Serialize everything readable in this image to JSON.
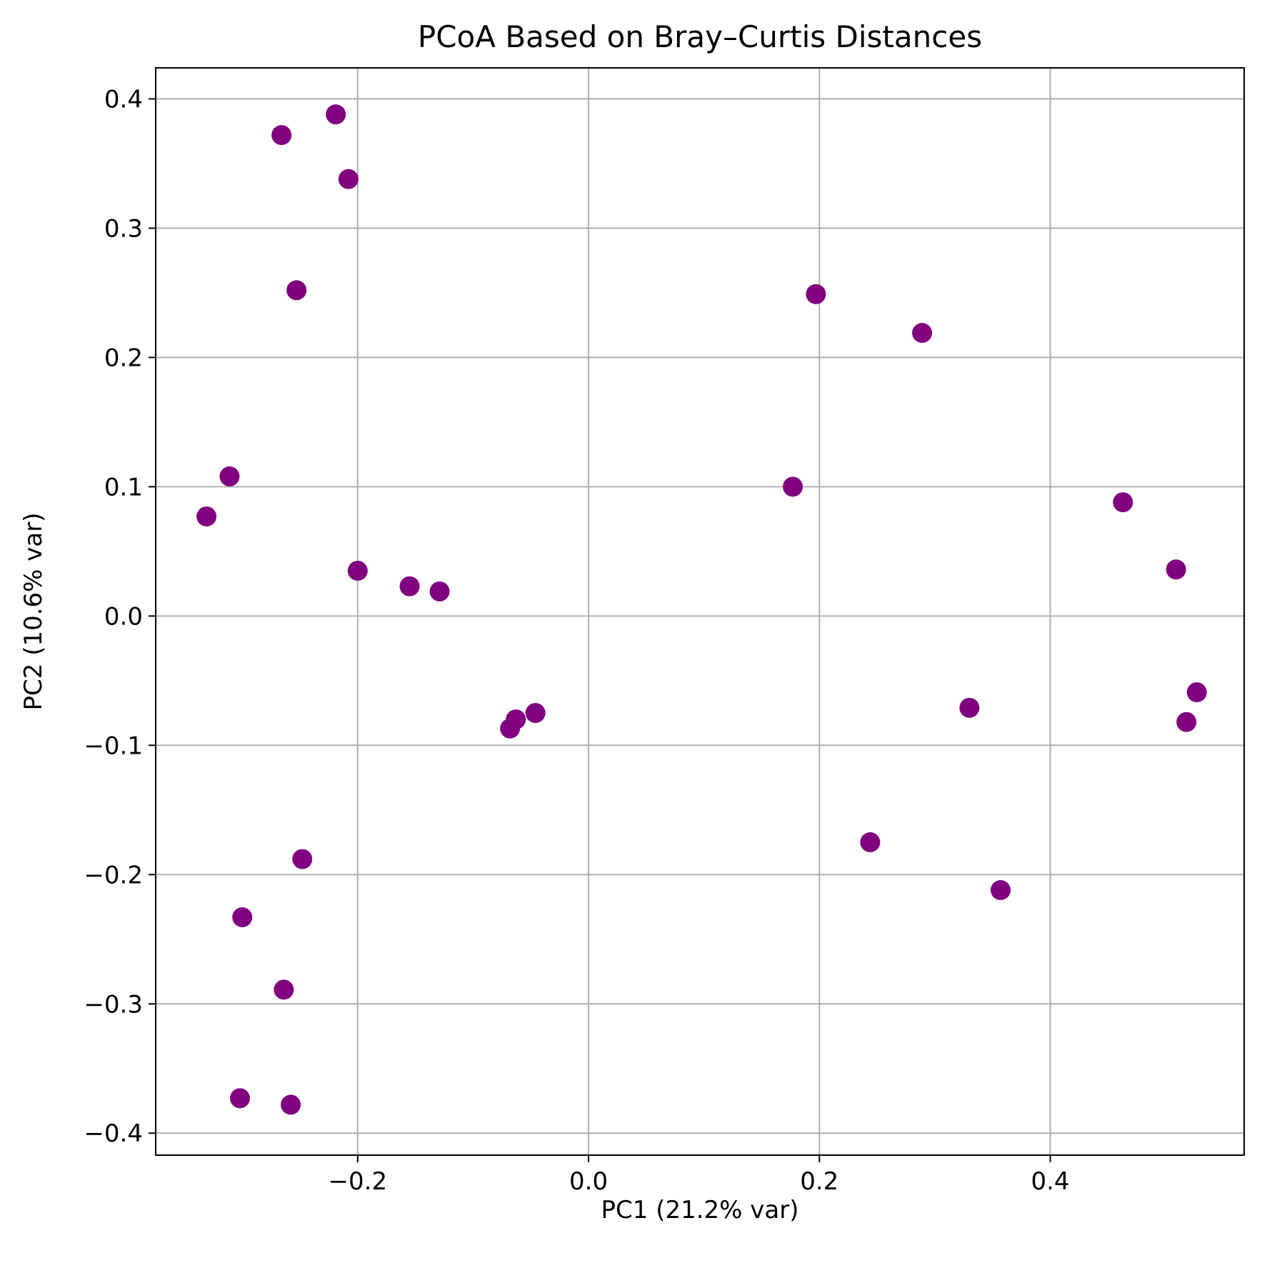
{
  "chart_data": {
    "type": "scatter",
    "title": "PCoA Based on Bray–Curtis Distances",
    "xlabel": "PC1 (21.2% var)",
    "ylabel": "PC2 (10.6% var)",
    "xlim": [
      -0.375,
      0.568
    ],
    "ylim": [
      -0.417,
      0.424
    ],
    "x_ticks": [
      -0.2,
      0.0,
      0.2,
      0.4
    ],
    "x_tick_labels": [
      "−0.2",
      "0.0",
      "0.2",
      "0.4"
    ],
    "y_ticks": [
      -0.4,
      -0.3,
      -0.2,
      -0.1,
      0.0,
      0.1,
      0.2,
      0.3,
      0.4
    ],
    "y_tick_labels": [
      "−0.4",
      "−0.3",
      "−0.2",
      "−0.1",
      "0.0",
      "0.1",
      "0.2",
      "0.3",
      "0.4"
    ],
    "grid": true,
    "legend": null,
    "marker_color": "#800080",
    "points": [
      {
        "x": -0.266,
        "y": 0.372
      },
      {
        "x": -0.219,
        "y": 0.388
      },
      {
        "x": -0.208,
        "y": 0.338
      },
      {
        "x": -0.253,
        "y": 0.252
      },
      {
        "x": -0.311,
        "y": 0.108
      },
      {
        "x": -0.331,
        "y": 0.077
      },
      {
        "x": -0.2,
        "y": 0.035
      },
      {
        "x": -0.155,
        "y": 0.023
      },
      {
        "x": -0.129,
        "y": 0.019
      },
      {
        "x": -0.063,
        "y": -0.08
      },
      {
        "x": -0.046,
        "y": -0.075
      },
      {
        "x": -0.068,
        "y": -0.087
      },
      {
        "x": -0.248,
        "y": -0.188
      },
      {
        "x": -0.3,
        "y": -0.233
      },
      {
        "x": -0.264,
        "y": -0.289
      },
      {
        "x": -0.302,
        "y": -0.373
      },
      {
        "x": -0.258,
        "y": -0.378
      },
      {
        "x": 0.197,
        "y": 0.249
      },
      {
        "x": 0.289,
        "y": 0.219
      },
      {
        "x": 0.177,
        "y": 0.1
      },
      {
        "x": 0.463,
        "y": 0.088
      },
      {
        "x": 0.509,
        "y": 0.036
      },
      {
        "x": 0.33,
        "y": -0.071
      },
      {
        "x": 0.527,
        "y": -0.059
      },
      {
        "x": 0.518,
        "y": -0.082
      },
      {
        "x": 0.244,
        "y": -0.175
      },
      {
        "x": 0.357,
        "y": -0.212
      }
    ]
  }
}
